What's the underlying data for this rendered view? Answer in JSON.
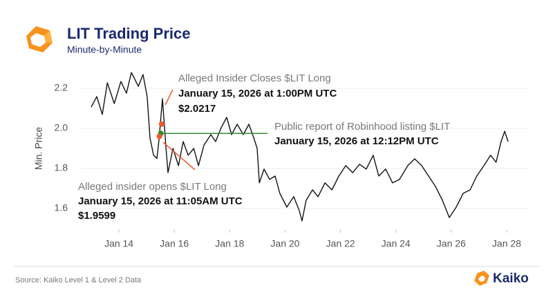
{
  "chart_data": {
    "type": "line",
    "title": "LIT Trading Price",
    "subtitle": "Minute-by-Minute",
    "y_label": "Min. Price",
    "source": "Source: Kaiko Level 1 & Level 2 Data",
    "brand": "Kaiko",
    "x": [
      13.0,
      13.2,
      13.4,
      13.58,
      13.83,
      14.07,
      14.27,
      14.45,
      14.7,
      14.87,
      15.02,
      15.12,
      15.25,
      15.37,
      15.45,
      15.57,
      15.7,
      15.77,
      15.95,
      16.15,
      16.32,
      16.5,
      16.7,
      16.87,
      17.07,
      17.32,
      17.49,
      17.69,
      17.89,
      18.07,
      18.27,
      18.49,
      18.69,
      18.87,
      18.99,
      19.07,
      19.24,
      19.44,
      19.64,
      19.81,
      20.06,
      20.31,
      20.51,
      20.61,
      20.76,
      20.99,
      21.19,
      21.44,
      21.69,
      21.94,
      22.19,
      22.44,
      22.69,
      22.93,
      23.18,
      23.38,
      23.63,
      23.88,
      24.13,
      24.43,
      24.68,
      24.93,
      25.18,
      25.43,
      25.68,
      25.93,
      26.18,
      26.43,
      26.68,
      26.92,
      27.18,
      27.42,
      27.62,
      27.8,
      27.93,
      28.05
    ],
    "series": [
      {
        "color": "#111111",
        "values": [
          2.107,
          2.159,
          2.07,
          2.228,
          2.124,
          2.234,
          2.176,
          2.279,
          2.21,
          2.269,
          2.159,
          1.952,
          1.866,
          1.85,
          1.95,
          2.148,
          1.9,
          1.779,
          1.9,
          1.814,
          1.934,
          1.866,
          1.9,
          1.814,
          1.917,
          1.969,
          1.934,
          2.003,
          2.055,
          1.969,
          2.021,
          1.969,
          2.021,
          1.952,
          1.9,
          1.728,
          1.797,
          1.745,
          1.762,
          1.676,
          1.607,
          1.659,
          1.59,
          1.538,
          1.641,
          1.693,
          1.659,
          1.728,
          1.693,
          1.762,
          1.814,
          1.779,
          1.821,
          1.797,
          1.866,
          1.762,
          1.797,
          1.728,
          1.745,
          1.814,
          1.848,
          1.814,
          1.762,
          1.71,
          1.641,
          1.555,
          1.607,
          1.676,
          1.693,
          1.762,
          1.814,
          1.866,
          1.831,
          1.934,
          1.986,
          1.934
        ]
      }
    ],
    "xlim": [
      12.6,
      28.8
    ],
    "ylim": [
      1.5,
      2.3
    ],
    "xticks": [
      {
        "value": 14,
        "label": "Jan 14"
      },
      {
        "value": 16,
        "label": "Jan 16"
      },
      {
        "value": 18,
        "label": "Jan 18"
      },
      {
        "value": 20,
        "label": "Jan 20"
      },
      {
        "value": 22,
        "label": "Jan 22"
      },
      {
        "value": 24,
        "label": "Jan 24"
      },
      {
        "value": 26,
        "label": "Jan 26"
      },
      {
        "value": 28,
        "label": "Jan 28"
      }
    ],
    "yticks": [
      1.6,
      1.8,
      {
        "value": 2,
        "label": "2.0"
      },
      2.2
    ],
    "grid": true,
    "annotations": [
      {
        "label": "Alleged Insider Closes $LIT Long",
        "date": "January 15, 2026 at 1:00PM UTC",
        "price": "$2.0217",
        "x": 15.54,
        "y": 2.0217,
        "color": "#f0592a"
      },
      {
        "label": "Public report of Robinhood listing $LIT",
        "date": "January 15, 2026 at 12:12PM UTC",
        "x": 15.51,
        "y": 1.975,
        "line_end_x": 19.37,
        "color": "#2e8b2e"
      },
      {
        "label": "Alleged insider opens $LIT Long",
        "date": "January 15, 2026 at 11:05AM UTC",
        "price": "$1.9599",
        "x": 15.46,
        "y": 1.9599,
        "color": "#f0592a"
      }
    ]
  }
}
